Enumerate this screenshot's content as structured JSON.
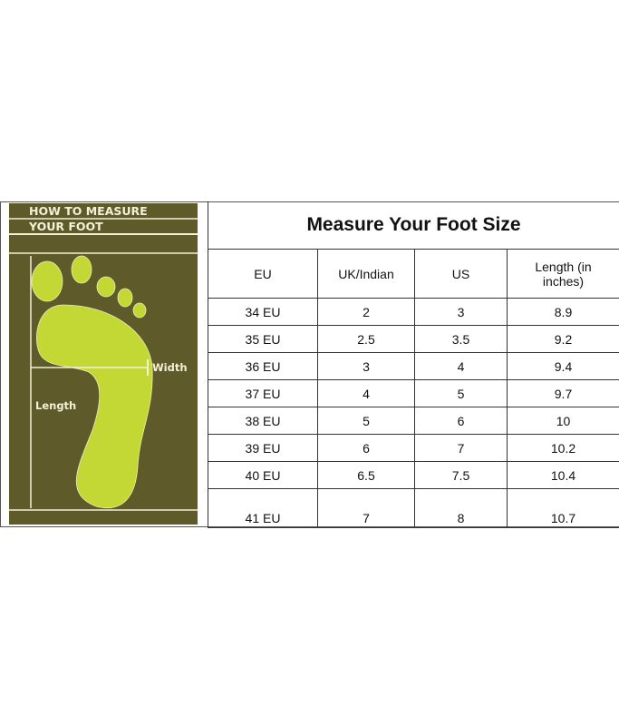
{
  "panel": {
    "title_line1": "HOW TO MEASURE",
    "title_line2": "YOUR FOOT",
    "width_label": "Width",
    "length_label": "Length",
    "colors": {
      "background": "#5e5a2a",
      "foot": "#c3d834",
      "lines": "#f4f0d8"
    }
  },
  "table": {
    "title": "Measure Your Foot Size",
    "headers": [
      "EU",
      "UK/Indian",
      "US",
      "Length (in inches)"
    ],
    "rows": [
      [
        "34 EU",
        "2",
        "3",
        "8.9"
      ],
      [
        "35 EU",
        "2.5",
        "3.5",
        "9.2"
      ],
      [
        "36 EU",
        "3",
        "4",
        "9.4"
      ],
      [
        "37 EU",
        "4",
        "5",
        "9.7"
      ],
      [
        "38 EU",
        "5",
        "6",
        "10"
      ],
      [
        "39 EU",
        "6",
        "7",
        "10.2"
      ],
      [
        "40 EU",
        "6.5",
        "7.5",
        "10.4"
      ],
      [
        "41 EU",
        "7",
        "8",
        "10.7"
      ]
    ]
  }
}
